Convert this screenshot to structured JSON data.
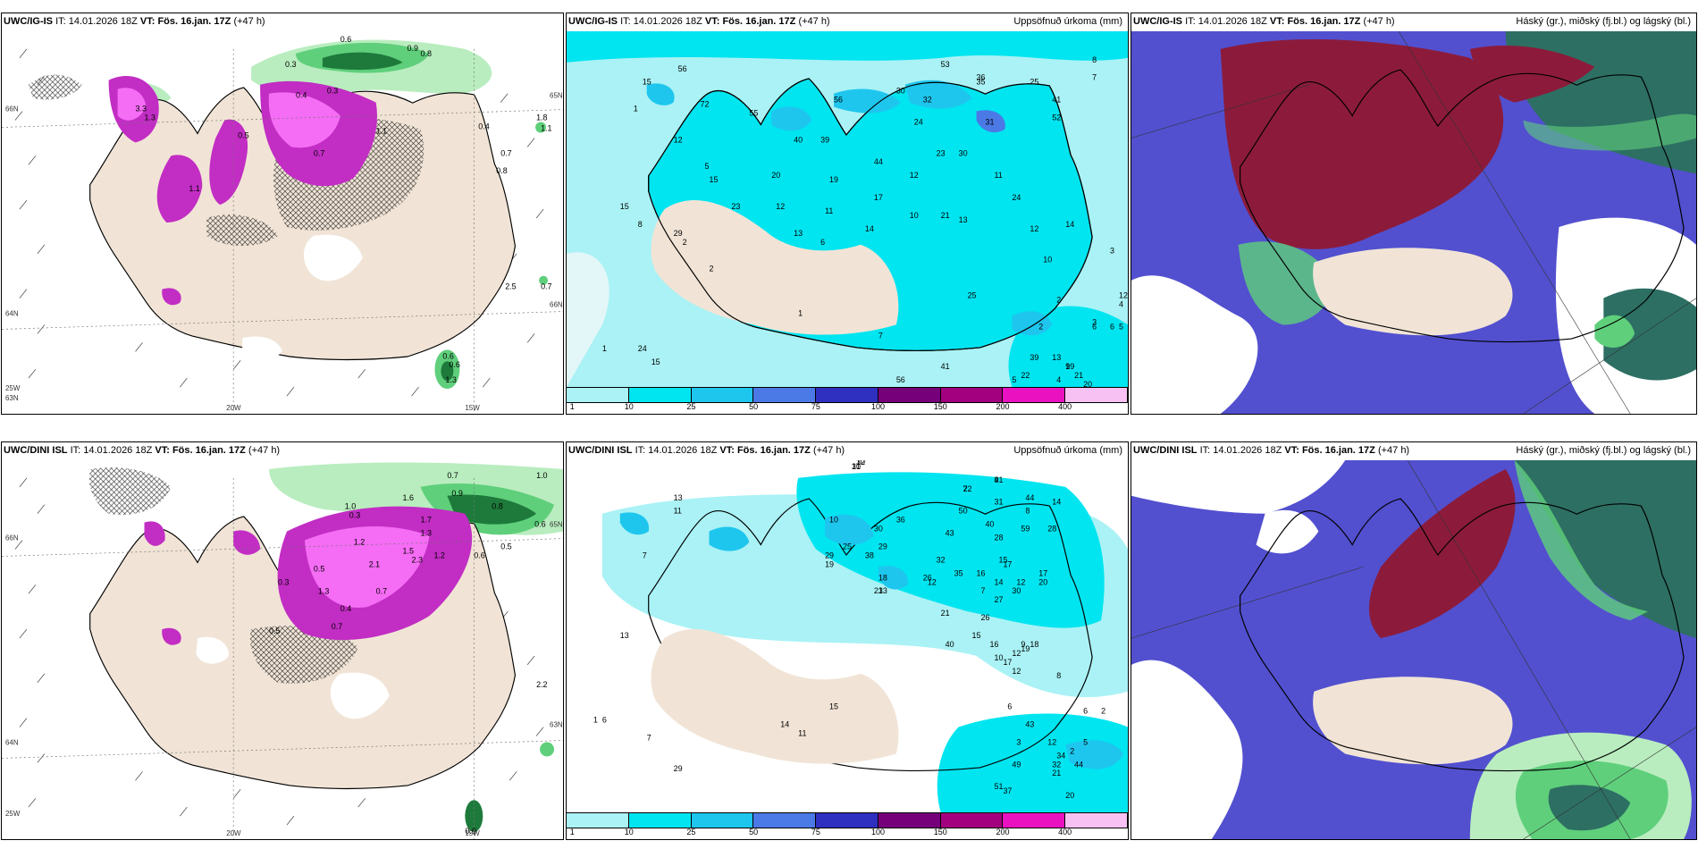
{
  "colors": {
    "land": "#f1e4d6",
    "sea_light": "#e3f7f8",
    "cyan": "#00e5f0",
    "precip_light": "#aaf2f5",
    "blue1": "#1ec6ee",
    "blue2": "#4b79e6",
    "navy": "#2f2fc0",
    "purple": "#75007a",
    "magenta": "#c22dc4",
    "pink": "#f56cf5",
    "green_light": "#b9edbf",
    "green_mid": "#5fcf7b",
    "green_dark": "#1e7a3b",
    "cloud_high": "#8c1b3b",
    "cloud_mid": "#5250cf",
    "cloud_low": "#2d6f63"
  },
  "panels": {
    "p1": {
      "model": "UWC/IG-IS",
      "it_label": "IT:",
      "it_value": "14.01.2026 18Z",
      "vt_label": "VT:",
      "vt_value": "Fös. 16.jan. 17Z",
      "lead": "(+47 h)",
      "lat_labels": [
        "66N",
        "65N",
        "66N",
        "64N",
        "63N"
      ],
      "lon_labels": [
        "20W",
        "15W",
        "25W"
      ],
      "values": [
        "0.3",
        "0.6",
        "0.8",
        "3.3",
        "0.9",
        "1.3",
        "0.5",
        "0.4",
        "0.7",
        "0.3",
        "1.1",
        "0.7",
        "1.8",
        "0.8",
        "0.4",
        "1.1",
        "2.5",
        "0.6",
        "1.3",
        "1.1",
        "0.7",
        "0.6"
      ]
    },
    "p2": {
      "model": "UWC/IG-IS",
      "it_label": "IT:",
      "it_value": "14.01.2026 18Z",
      "vt_label": "VT:",
      "vt_value": "Fös. 16.jan. 17Z",
      "lead": "(+47 h)",
      "title_right": "Uppsöfnuð úrkoma (mm)",
      "colorbar_ticks": [
        "1",
        "10",
        "25",
        "50",
        "75",
        "100",
        "150",
        "200",
        "400"
      ],
      "values": [
        "8",
        "53",
        "36",
        "15",
        "56",
        "30",
        "32",
        "1",
        "72",
        "55",
        "56",
        "35",
        "25",
        "41",
        "7",
        "12",
        "40",
        "39",
        "24",
        "52",
        "31",
        "5",
        "20",
        "44",
        "23",
        "30",
        "15",
        "12",
        "19",
        "17",
        "11",
        "24",
        "15",
        "23",
        "12",
        "11",
        "10",
        "21",
        "13",
        "14",
        "12",
        "14",
        "29",
        "13",
        "8",
        "2",
        "6",
        "2",
        "1",
        "7",
        "25",
        "10",
        "2",
        "2",
        "3",
        "1",
        "24",
        "15",
        "6",
        "6",
        "5",
        "13",
        "39",
        "41",
        "19",
        "56",
        "5",
        "9",
        "21",
        "22",
        "20",
        "12",
        "3",
        "4",
        "4"
      ]
    },
    "p3": {
      "model": "UWC/IG-IS",
      "it_label": "IT:",
      "it_value": "14.01.2026 18Z",
      "vt_label": "VT:",
      "vt_value": "Fös. 16.jan. 17Z",
      "lead": "(+47 h)",
      "title_right": "Háský (gr.), miðský (fj.bl.) og lágský (bl.)"
    },
    "p4": {
      "model": "UWC/DINI ISL",
      "it_label": "IT:",
      "it_value": "14.01.2026 18Z",
      "vt_label": "VT:",
      "vt_value": "Fös. 16.jan. 17Z",
      "lead": "(+47 h)",
      "lat_labels": [
        "66N",
        "65N",
        "64N",
        "63N"
      ],
      "lon_labels": [
        "20W",
        "15W",
        "25W"
      ],
      "values": [
        "1.0",
        "0.6",
        "0.7",
        "0.8",
        "0.9",
        "1.6",
        "1.7",
        "1.0",
        "0.3",
        "1.3",
        "1.2",
        "2.1",
        "1.5",
        "2.3",
        "0.6",
        "1.2",
        "0.5",
        "0.4",
        "0.7",
        "0.5",
        "0.3",
        "1.3",
        "0.7",
        "0.5",
        "2.2",
        "0.0"
      ]
    },
    "p5": {
      "model": "UWC/DINI ISL",
      "it_label": "IT:",
      "it_value": "14.01.2026 18Z",
      "vt_label": "VT:",
      "vt_value": "Fös. 16.jan. 17Z",
      "lead": "(+47 h)",
      "title_right": "Uppsöfnuð úrkoma (mm)",
      "colorbar_ticks": [
        "1",
        "10",
        "25",
        "50",
        "75",
        "100",
        "150",
        "200",
        "400"
      ],
      "values": [
        "10",
        "10",
        "22",
        "41",
        "14",
        "13",
        "31",
        "40",
        "44",
        "8",
        "11",
        "50",
        "28",
        "59",
        "10",
        "43",
        "17",
        "30",
        "36",
        "18",
        "29",
        "38",
        "26",
        "35",
        "15",
        "17",
        "25",
        "32",
        "28",
        "16",
        "29",
        "19",
        "21",
        "12",
        "33",
        "14",
        "12",
        "27",
        "7",
        "30",
        "21",
        "26",
        "20",
        "15",
        "40",
        "9",
        "16",
        "18",
        "12",
        "17",
        "19",
        "10",
        "12",
        "8",
        "6",
        "7",
        "11",
        "15",
        "14",
        "13",
        "6",
        "1",
        "7",
        "3",
        "6",
        "2",
        "2",
        "5",
        "12",
        "34",
        "44",
        "51",
        "37",
        "32",
        "21",
        "49",
        "20",
        "29",
        "43",
        "31",
        "32",
        "7",
        "9"
      ]
    },
    "p6": {
      "model": "UWC/DINI ISL",
      "it_label": "IT:",
      "it_value": "14.01.2026 18Z",
      "vt_label": "VT:",
      "vt_value": "Fös. 16.jan. 17Z",
      "lead": "(+47 h)",
      "title_right": "Háský (gr.), miðský (fj.bl.) og lágský (bl.)"
    }
  }
}
